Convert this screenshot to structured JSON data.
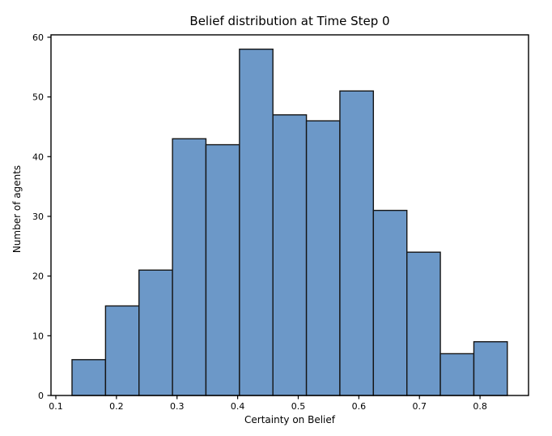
{
  "chart_data": {
    "type": "bar",
    "subtype": "histogram",
    "title": "Belief distribution at Time Step 0",
    "xlabel": "Certainty on Belief",
    "ylabel": "Number of agents",
    "bin_edges": [
      0.1267,
      0.182,
      0.2372,
      0.2925,
      0.3477,
      0.403,
      0.4582,
      0.5135,
      0.5687,
      0.624,
      0.6793,
      0.7345,
      0.7898,
      0.845
    ],
    "counts": [
      6,
      15,
      21,
      43,
      42,
      58,
      47,
      46,
      51,
      31,
      24,
      7,
      9
    ],
    "x_ticks": [
      0.1,
      0.2,
      0.3,
      0.4,
      0.5,
      0.6,
      0.7,
      0.8
    ],
    "y_ticks": [
      0,
      10,
      20,
      30,
      40,
      50,
      60
    ],
    "xlim": [
      0.092,
      0.88
    ],
    "ylim": [
      0,
      60.4
    ],
    "grid": false,
    "legend": false,
    "colors": {
      "bar_fill": "#6C98C8",
      "bar_edge": "#151515",
      "axis": "#000000",
      "text": "#000000",
      "background": "#FFFFFF"
    }
  }
}
